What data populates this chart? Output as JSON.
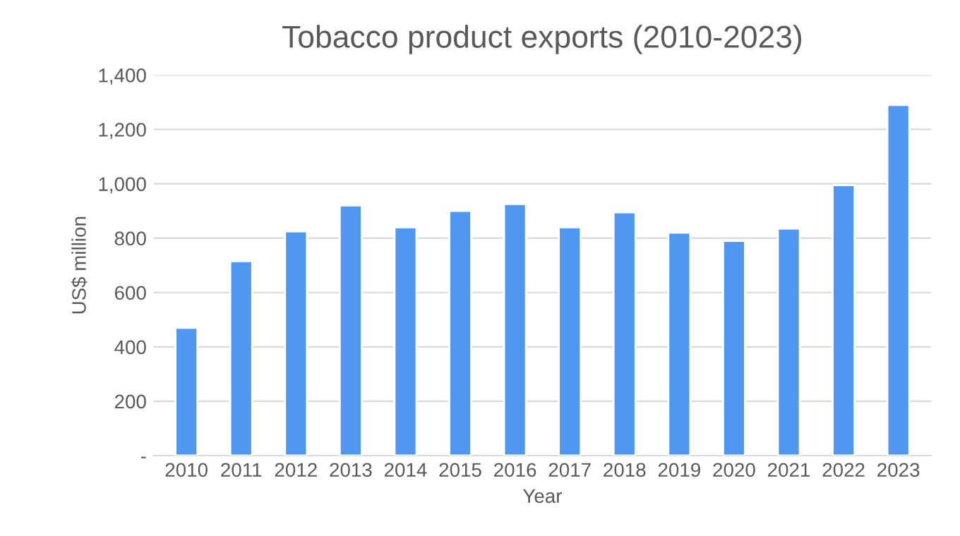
{
  "chart_data": {
    "type": "bar",
    "title": "Tobacco product exports (2010-2023)",
    "xlabel": "Year",
    "ylabel": "US$ million",
    "categories": [
      "2010",
      "2011",
      "2012",
      "2013",
      "2014",
      "2015",
      "2016",
      "2017",
      "2018",
      "2019",
      "2020",
      "2021",
      "2022",
      "2023"
    ],
    "values": [
      470,
      715,
      825,
      920,
      840,
      900,
      925,
      840,
      895,
      820,
      790,
      835,
      995,
      1290
    ],
    "color": "#4f97f0",
    "ylim": [
      0,
      1400
    ],
    "yticks": [
      {
        "value": 0,
        "label": "-"
      },
      200,
      400,
      600,
      800,
      {
        "value": 1000,
        "label": "1,000"
      },
      {
        "value": 1200,
        "label": "1,200"
      },
      {
        "value": 1400,
        "label": "1,400"
      }
    ],
    "grid": "y"
  }
}
